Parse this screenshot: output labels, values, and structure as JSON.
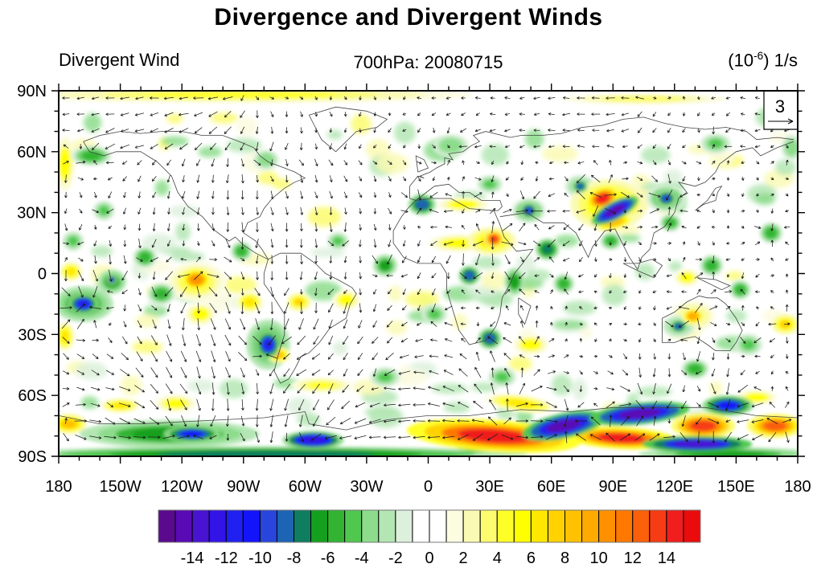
{
  "title": "Divergence and Divergent Winds",
  "header": {
    "left_label": "Divergent Wind",
    "center_label": "700hPa: 20080715",
    "units": {
      "prefix": "(10",
      "exponent": "-6",
      "suffix": ") 1/s"
    }
  },
  "reference_vector": {
    "label": "3"
  },
  "chart_data": {
    "type": "heatmap",
    "subtype": "filled-contour-map-with-divergent-wind-vectors",
    "title": "Divergence and Divergent Winds",
    "field_label": "Divergent Wind",
    "level_time_label": "700hPa: 20080715",
    "units": "(10^-6) 1/s",
    "projection": "equirectangular",
    "lon_range": [
      -180,
      180
    ],
    "lat_range": [
      -90,
      90
    ],
    "x_tick_labels": [
      "180",
      "150W",
      "120W",
      "90W",
      "60W",
      "30W",
      "0",
      "30E",
      "60E",
      "90E",
      "120E",
      "150E",
      "180"
    ],
    "y_tick_labels": [
      "90N",
      "60N",
      "30N",
      "0",
      "30S",
      "60S",
      "90S"
    ],
    "major_tick_deg": 30,
    "minor_tick_deg": 10,
    "grid": false,
    "legend_position": "bottom-colorbar",
    "reference_vector_value": 3,
    "colorbar": {
      "min": -16,
      "max": 16,
      "step": 1,
      "tick_labels": [
        "-14",
        "-12",
        "-10",
        "-8",
        "-6",
        "-4",
        "-2",
        "0",
        "2",
        "4",
        "6",
        "8",
        "10",
        "12",
        "14"
      ],
      "colors": [
        "#5a0a8c",
        "#5a0ab4",
        "#4814d2",
        "#3214e6",
        "#2020f0",
        "#1414fa",
        "#2846dc",
        "#1e64b4",
        "#0f7d5f",
        "#14a01e",
        "#32b432",
        "#50c850",
        "#8cdc8c",
        "#b4e6b4",
        "#dcf0dc",
        "#ffffff",
        "#ffffff",
        "#fcfce0",
        "#fafab4",
        "#fcfc6e",
        "#ffff28",
        "#ffff00",
        "#ffe800",
        "#ffd200",
        "#ffc100",
        "#ffaa00",
        "#ff9100",
        "#ff7800",
        "#fa5f0a",
        "#f53c14",
        "#f01e1e",
        "#ea0c0c"
      ]
    },
    "features_format": [
      "lon",
      "lat",
      "rx_deg",
      "ry_deg",
      "value_1e-6_per_s",
      "rotation_deg"
    ],
    "features": [
      [
        -79,
        -89,
        102,
        3.2,
        -8,
        0
      ],
      [
        146,
        -89,
        35,
        2.8,
        -7,
        0
      ],
      [
        -126,
        -79,
        35,
        5.5,
        -7,
        0
      ],
      [
        -115,
        -79,
        11,
        3.2,
        -11,
        0
      ],
      [
        -56,
        -82,
        12,
        3.6,
        -13,
        0
      ],
      [
        -175,
        -74,
        7,
        4,
        8,
        0
      ],
      [
        -123,
        -64,
        8,
        3.5,
        5,
        0
      ],
      [
        24,
        -84,
        9,
        3.6,
        -12,
        0
      ],
      [
        32,
        -80,
        34,
        6.3,
        14,
        4
      ],
      [
        66,
        -75,
        16.5,
        5,
        -15,
        -12
      ],
      [
        103,
        -69,
        19.6,
        4.3,
        -15,
        -6
      ],
      [
        94,
        -81,
        22,
        4.3,
        14,
        3
      ],
      [
        134,
        -75,
        12.5,
        5,
        13,
        0
      ],
      [
        131,
        -84,
        21.5,
        3.2,
        -14,
        0
      ],
      [
        146,
        -65,
        10,
        4,
        -11,
        0
      ],
      [
        169,
        -75,
        11,
        4.7,
        12,
        0
      ],
      [
        45,
        -64,
        14,
        3.5,
        6,
        8
      ],
      [
        160,
        -61,
        8,
        3,
        5,
        0
      ],
      [
        88,
        34,
        15,
        10,
        7,
        0
      ],
      [
        85,
        37,
        6.5,
        4.3,
        14,
        -20
      ],
      [
        91,
        31,
        10.2,
        3.6,
        -15,
        -28
      ],
      [
        91,
        25,
        8,
        3,
        8,
        -15
      ],
      [
        31,
        16,
        9.5,
        5.5,
        7,
        0
      ],
      [
        32,
        17,
        3.9,
        3.6,
        13,
        0
      ],
      [
        -113,
        -3,
        6.3,
        4.7,
        10,
        0
      ],
      [
        -113,
        -4,
        11.7,
        7.9,
        5,
        0
      ],
      [
        -168,
        -15,
        5.9,
        4,
        -12,
        0
      ],
      [
        -168,
        -15,
        11.7,
        7.1,
        -7,
        0
      ],
      [
        -78,
        -35,
        4.7,
        5.5,
        -12,
        0
      ],
      [
        -78,
        -35,
        8.6,
        9.9,
        -7,
        0
      ],
      [
        -73,
        -40,
        4.7,
        3.2,
        8,
        0
      ],
      [
        -63,
        -14,
        4.7,
        3.6,
        7,
        0
      ],
      [
        49,
        31,
        3.5,
        3.2,
        -10,
        0
      ],
      [
        49,
        31,
        6.6,
        5,
        -6,
        0
      ],
      [
        116,
        37,
        3.9,
        3.2,
        -10,
        0
      ],
      [
        116,
        37,
        7.8,
        5.5,
        -6,
        0
      ],
      [
        74,
        43,
        3.1,
        2.8,
        -9,
        0
      ],
      [
        74,
        43,
        6,
        4.5,
        -5,
        0
      ],
      [
        129,
        -21,
        4.7,
        3.6,
        9,
        0
      ],
      [
        129,
        -21,
        8.6,
        6,
        5,
        0
      ],
      [
        122,
        -26,
        3.5,
        2.8,
        -9,
        0
      ],
      [
        122,
        -26,
        6.5,
        4.5,
        -5,
        0
      ],
      [
        174,
        -25,
        5.5,
        4,
        7,
        0
      ],
      [
        -3,
        34,
        5.5,
        4.3,
        -9,
        0
      ],
      [
        58,
        12,
        4.7,
        4.3,
        -8,
        0
      ],
      [
        20,
        -1,
        4.3,
        4,
        -9,
        0
      ],
      [
        42,
        -4,
        3.9,
        5.5,
        -7,
        0
      ],
      [
        -21,
        4,
        4.7,
        4.3,
        -7,
        0
      ],
      [
        30,
        -32,
        4.7,
        4.3,
        -9,
        0
      ],
      [
        66,
        -5,
        4.3,
        4,
        -6,
        0
      ],
      [
        89,
        16,
        4.3,
        3.6,
        -6,
        0
      ],
      [
        118,
        25,
        4.3,
        3.6,
        -6,
        0
      ],
      [
        138,
        4,
        4.7,
        4.3,
        -6,
        0
      ],
      [
        152,
        -8,
        4.3,
        4,
        -6,
        0
      ],
      [
        130,
        -47,
        5.5,
        4,
        -6,
        0
      ],
      [
        -154,
        -4,
        5.5,
        4.7,
        -7,
        0
      ],
      [
        -154,
        -3,
        2,
        2,
        -10,
        0
      ],
      [
        -130,
        -10,
        5.5,
        4.3,
        -6,
        0
      ],
      [
        -138,
        8,
        4.7,
        4.3,
        -6,
        0
      ],
      [
        -91,
        11,
        4.3,
        4,
        -6,
        0
      ],
      [
        -44,
        16,
        4.3,
        3.6,
        -5,
        0
      ],
      [
        -87,
        -14,
        5.5,
        4.3,
        6,
        0
      ],
      [
        -174,
        1,
        4.7,
        4,
        6,
        0
      ],
      [
        -173,
        16,
        4.3,
        4,
        -5,
        0
      ],
      [
        15,
        15,
        12,
        3.5,
        5,
        0
      ],
      [
        50,
        -35,
        7,
        4,
        5,
        0
      ],
      [
        36,
        -51,
        5.5,
        4,
        -5,
        0
      ],
      [
        11,
        63,
        7,
        4.5,
        -4,
        0
      ],
      [
        30,
        44,
        5,
        3.6,
        -5,
        0
      ],
      [
        17,
        34,
        10,
        3,
        5,
        0
      ],
      [
        -91,
        88,
        90,
        3.2,
        4,
        0
      ],
      [
        105,
        86,
        40,
        2.8,
        3,
        0
      ],
      [
        -177,
        54,
        4,
        11,
        5,
        0
      ],
      [
        140,
        64,
        6,
        4,
        -5,
        0
      ],
      [
        167,
        20,
        4.7,
        4.3,
        -6,
        0
      ],
      [
        156,
        -35,
        5.5,
        4.3,
        -5,
        0
      ],
      [
        126,
        -2,
        5,
        3.5,
        5,
        0
      ],
      [
        -164,
        58,
        8,
        4,
        -6,
        0
      ],
      [
        -79,
        56,
        5,
        4,
        -4,
        0
      ],
      [
        -158,
        31,
        4.3,
        4,
        -5,
        0
      ],
      [
        -111,
        -20,
        6,
        4.5,
        5,
        0
      ],
      [
        -40,
        -13,
        5.5,
        4,
        5,
        0
      ],
      [
        -21,
        -51,
        6,
        4,
        -5,
        0
      ],
      [
        3,
        -20,
        5,
        4,
        -5,
        0
      ],
      [
        -52,
        -55,
        12,
        3,
        4,
        0
      ],
      [
        -150,
        -65,
        8,
        3,
        6,
        0
      ],
      [
        -177,
        -31,
        4,
        6,
        6,
        0
      ],
      [
        177,
        62,
        4,
        5,
        -4,
        0
      ]
    ]
  }
}
